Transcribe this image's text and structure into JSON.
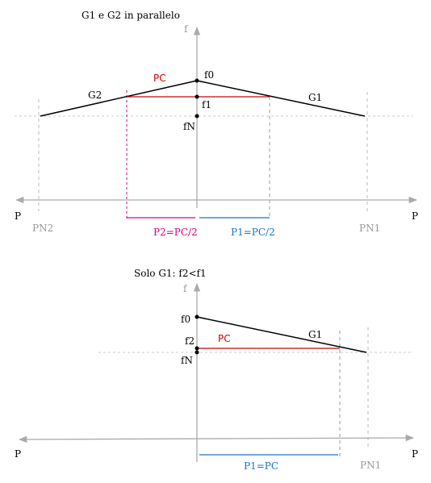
{
  "colors": {
    "axis": "#aaaaaa",
    "guide": "#bbbbbb",
    "curve": "#000000",
    "pc": "#cc0000",
    "p2": "#e0007f",
    "p1": "#1a73c8",
    "pn": "#999999"
  },
  "top": {
    "title": "G1 e G2 in parallelo",
    "axis_f": "f",
    "axis_p_left": "P",
    "axis_p_right": "P",
    "g1": "G1",
    "g2": "G2",
    "f0": "f0",
    "f1": "f1",
    "fN": "fN",
    "pc": "PC",
    "pn1": "PN1",
    "pn2": "PN2",
    "p1": "P1=PC/2",
    "p2": "P2=PC/2"
  },
  "bottom": {
    "title": "Solo G1: f2<f1",
    "axis_f": "f",
    "axis_p_left": "P",
    "axis_p_right": "P",
    "g1": "G1",
    "f0": "f0",
    "f2": "f2",
    "fN": "fN",
    "pc": "PC",
    "pn1": "PN1",
    "p1": "P1=PC"
  }
}
